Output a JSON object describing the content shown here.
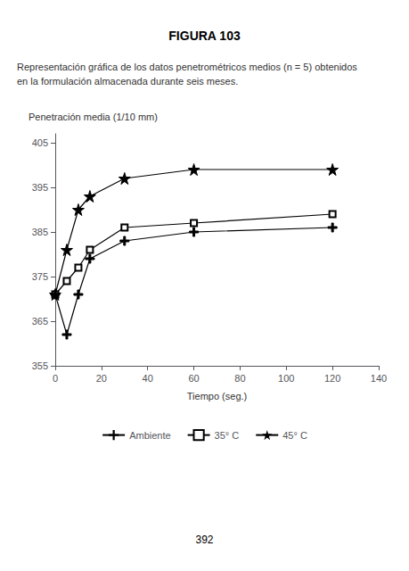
{
  "chart_data": {
    "type": "line",
    "title": "FIGURA 103",
    "subtitle": [
      "Representación gráfica de los datos penetrométricos medios (n = 5) obtenidos",
      "en la formulación almacenada durante seis meses."
    ],
    "annotations": [
      "392"
    ],
    "xlabel": "Tiempo (seg.)",
    "ylabel": "Penetración media (1/10 mm)",
    "x": [
      0,
      5,
      10,
      15,
      30,
      60,
      120
    ],
    "series": [
      {
        "name": "Ambiente",
        "marker": "plus",
        "color": "#000000",
        "values": [
          371,
          362,
          371,
          379,
          383,
          385,
          386
        ]
      },
      {
        "name": "35° C",
        "marker": "square",
        "color": "#000000",
        "values": [
          371,
          374,
          377,
          381,
          386,
          387,
          389
        ]
      },
      {
        "name": "45° C",
        "marker": "star",
        "color": "#000000",
        "values": [
          371,
          381,
          390,
          393,
          397,
          399,
          399
        ]
      }
    ],
    "xlim": [
      0,
      140
    ],
    "ylim": [
      355,
      407
    ],
    "xticks": [
      0,
      20,
      40,
      60,
      80,
      100,
      120,
      140
    ],
    "yticks": [
      355,
      365,
      375,
      385,
      395,
      405
    ],
    "grid": false,
    "legend": "bottom"
  }
}
